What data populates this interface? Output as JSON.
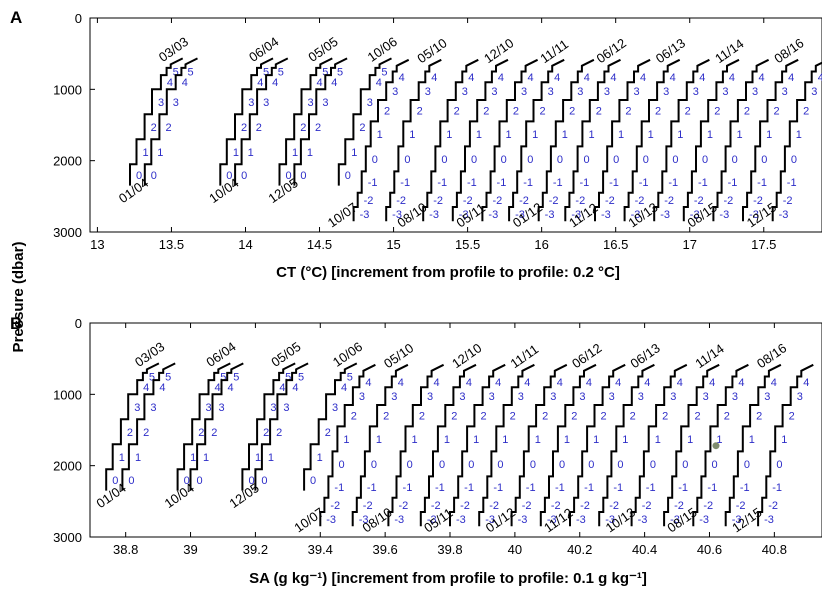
{
  "figure": {
    "ylabel": "Pressure (dbar)"
  },
  "chart_data": [
    {
      "type": "line",
      "panel_label": "A",
      "xlabel": "CT (°C) [increment from profile to profile: 0.2 °C]",
      "xlim": [
        12.95,
        17.9
      ],
      "ylim": [
        0,
        3000
      ],
      "y_reversed": true,
      "x_ticks": [
        "13",
        "13.5",
        "14",
        "14.5",
        "15",
        "15.5",
        "16",
        "16.5",
        "17",
        "17.5"
      ],
      "x_tick_values": [
        13,
        13.5,
        14,
        14.5,
        15,
        15.5,
        16,
        16.5,
        17,
        17.5
      ],
      "y_ticks": [
        "0",
        "1000",
        "2000",
        "3000"
      ],
      "y_tick_values": [
        0,
        1000,
        2000,
        3000
      ],
      "step_pressures": [
        2300,
        1950,
        1600,
        1250,
        950,
        800,
        700
      ],
      "step_labels_short": [
        "0",
        "1",
        "2",
        "3",
        "4",
        "5"
      ],
      "step_labels_deep": [
        "-3",
        "-2",
        "-1",
        "0",
        "1",
        "2",
        "3",
        "4",
        "5"
      ],
      "profiles": [
        {
          "label": "03/03",
          "base": 13.22,
          "deep": false
        },
        {
          "label": "01/04",
          "base": 13.32,
          "deep": false
        },
        {
          "label": "06/04",
          "base": 13.83,
          "deep": false
        },
        {
          "label": "10/04",
          "base": 13.93,
          "deep": false
        },
        {
          "label": "05/05",
          "base": 14.23,
          "deep": false
        },
        {
          "label": "12/05",
          "base": 14.33,
          "deep": false
        },
        {
          "label": "10/06",
          "base": 14.63,
          "deep": false
        },
        {
          "label": "10/07",
          "base": 14.73,
          "deep": true
        },
        {
          "label": "05/10",
          "base": 14.95,
          "deep": true
        },
        {
          "label": "08/10",
          "base": 15.2,
          "deep": true
        },
        {
          "label": "12/10",
          "base": 15.4,
          "deep": true
        },
        {
          "label": "05/11",
          "base": 15.6,
          "deep": true
        },
        {
          "label": "11/11",
          "base": 15.78,
          "deep": true
        },
        {
          "label": "01/12",
          "base": 15.98,
          "deep": true
        },
        {
          "label": "06/12",
          "base": 16.16,
          "deep": true
        },
        {
          "label": "11/12",
          "base": 16.36,
          "deep": true
        },
        {
          "label": "06/13",
          "base": 16.56,
          "deep": true
        },
        {
          "label": "10/13",
          "base": 16.76,
          "deep": true
        },
        {
          "label": "11/14",
          "base": 16.96,
          "deep": true
        },
        {
          "label": "08/15",
          "base": 17.16,
          "deep": true
        },
        {
          "label": "08/16",
          "base": 17.36,
          "deep": true
        },
        {
          "label": "12/15",
          "base": 17.56,
          "deep": true
        }
      ]
    },
    {
      "type": "line",
      "panel_label": "B",
      "xlabel": "SA (g kg⁻¹) [increment from profile to profile: 0.1 g kg⁻¹]",
      "xlim": [
        38.69,
        40.95
      ],
      "ylim": [
        0,
        3000
      ],
      "y_reversed": true,
      "x_ticks": [
        "38.8",
        "39",
        "39.2",
        "39.4",
        "39.6",
        "39.8",
        "40",
        "40.2",
        "40.4",
        "40.6",
        "40.8"
      ],
      "x_tick_values": [
        38.8,
        39.0,
        39.2,
        39.4,
        39.6,
        39.8,
        40.0,
        40.2,
        40.4,
        40.6,
        40.8
      ],
      "y_ticks": [
        "0",
        "1000",
        "2000",
        "3000"
      ],
      "y_tick_values": [
        0,
        1000,
        2000,
        3000
      ],
      "step_pressures": [
        2300,
        1950,
        1600,
        1250,
        950,
        800,
        700
      ],
      "step_labels_short": [
        "0",
        "1",
        "2",
        "3",
        "4",
        "5"
      ],
      "step_labels_deep": [
        "-3",
        "-2",
        "-1",
        "0",
        "1",
        "2",
        "3",
        "4",
        "5"
      ],
      "profiles": [
        {
          "label": "03/03",
          "base": 38.74,
          "deep": false
        },
        {
          "label": "01/04",
          "base": 38.79,
          "deep": false
        },
        {
          "label": "06/04",
          "base": 38.96,
          "deep": false
        },
        {
          "label": "10/04",
          "base": 39.0,
          "deep": false
        },
        {
          "label": "05/05",
          "base": 39.16,
          "deep": false
        },
        {
          "label": "12/05",
          "base": 39.2,
          "deep": false
        },
        {
          "label": "10/06",
          "base": 39.35,
          "deep": false
        },
        {
          "label": "10/07",
          "base": 39.4,
          "deep": true
        },
        {
          "label": "05/10",
          "base": 39.5,
          "deep": true
        },
        {
          "label": "08/10",
          "base": 39.61,
          "deep": true
        },
        {
          "label": "12/10",
          "base": 39.71,
          "deep": true
        },
        {
          "label": "05/11",
          "base": 39.8,
          "deep": true
        },
        {
          "label": "11/11",
          "base": 39.89,
          "deep": true
        },
        {
          "label": "01/12",
          "base": 39.99,
          "deep": true
        },
        {
          "label": "06/12",
          "base": 40.08,
          "deep": true
        },
        {
          "label": "11/12",
          "base": 40.17,
          "deep": true
        },
        {
          "label": "06/13",
          "base": 40.26,
          "deep": true
        },
        {
          "label": "10/13",
          "base": 40.36,
          "deep": true
        },
        {
          "label": "11/14",
          "base": 40.46,
          "deep": true
        },
        {
          "label": "08/15",
          "base": 40.55,
          "deep": true
        },
        {
          "label": "08/16",
          "base": 40.65,
          "deep": true
        },
        {
          "label": "12/15",
          "base": 40.75,
          "deep": true
        }
      ],
      "marker": {
        "x": 40.62,
        "y": 1720,
        "color": "#7f8c6e"
      }
    }
  ]
}
